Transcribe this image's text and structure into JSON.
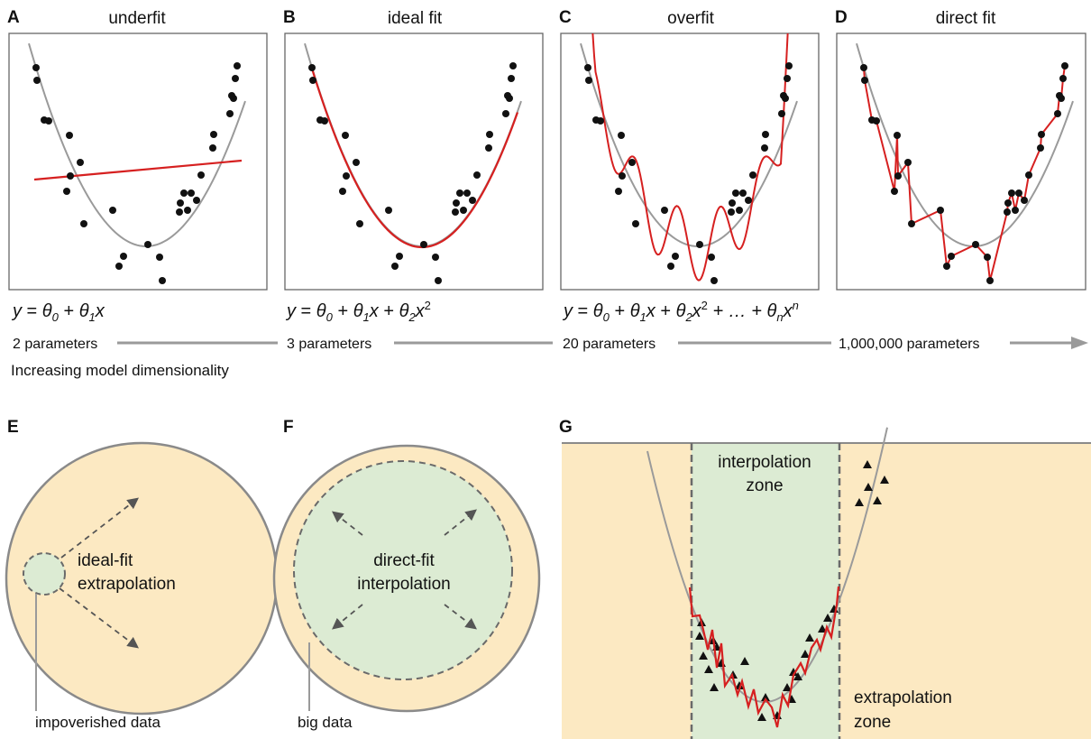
{
  "panels_top": [
    {
      "letter": "A",
      "title": "underfit"
    },
    {
      "letter": "B",
      "title": "ideal fit"
    },
    {
      "letter": "C",
      "title": "overfit"
    },
    {
      "letter": "D",
      "title": "direct fit"
    }
  ],
  "equations": {
    "a": {
      "y": "y",
      "eq": " = ",
      "t0": "θ",
      "s0": "0",
      "plus1": " + ",
      "t1": "θ",
      "s1": "1",
      "x": "x"
    },
    "b": {
      "y": "y",
      "eq": " = ",
      "t0": "θ",
      "s0": "0",
      "plus1": " + ",
      "t1": "θ",
      "s1": "1",
      "x": "x",
      "plus2": " + ",
      "t2": "θ",
      "s2": "2",
      "x2": "x",
      "p2": "2"
    },
    "c": {
      "y": "y",
      "eq": " = ",
      "t0": "θ",
      "s0": "0",
      "plus1": " + ",
      "t1": "θ",
      "s1": "1",
      "x": "x",
      "plus2": " + ",
      "t2": "θ",
      "s2": "2",
      "x2": "x",
      "p2": "2",
      "plus3": " + … + ",
      "tn": "θ",
      "sn": "n",
      "xn": "x",
      "pn": "n"
    }
  },
  "parameters": [
    "2 parameters",
    "3 parameters",
    "20 parameters",
    "1,000,000 parameters"
  ],
  "axis_caption": "Increasing model dimensionality",
  "panel_e": {
    "letter": "E",
    "label_line1": "ideal-fit",
    "label_line2": "extrapolation",
    "callout": "impoverished data"
  },
  "panel_f": {
    "letter": "F",
    "label_line1": "direct-fit",
    "label_line2": "interpolation",
    "callout": "big data"
  },
  "panel_g": {
    "letter": "G",
    "interp_line1": "interpolation",
    "interp_line2": "zone",
    "extrap_line1": "extrapolation",
    "extrap_line2": "zone"
  },
  "colors": {
    "fit_line": "#d62020",
    "true_curve": "#9a9a9a",
    "points": "#111111",
    "extrapolation_fill": "#fce9c2",
    "interpolation_fill": "#dcebd3",
    "dashed_border": "#6a6a6a",
    "arrow": "#9a9a9a"
  }
}
